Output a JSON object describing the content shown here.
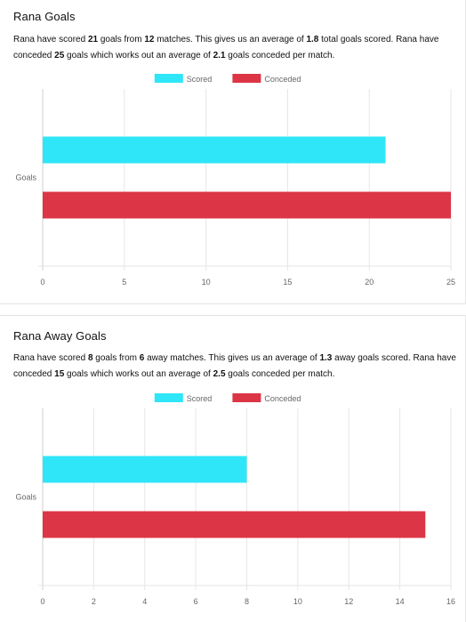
{
  "cards": [
    {
      "title": "Rana Goals",
      "desc": {
        "p1": "Rana have scored ",
        "scored": "21",
        "p2": " goals from ",
        "matches": "12",
        "p3": " matches. This gives us an average of ",
        "avg_scored": "1.8",
        "p4": " total goals scored. Rana have conceded ",
        "conceded": "25",
        "p5": " goals which works out an average of ",
        "avg_conceded": "2.1",
        "p6": " goals conceded per match."
      }
    },
    {
      "title": "Rana Away Goals",
      "desc": {
        "p1": "Rana have scored ",
        "scored": "8",
        "p2": " goals from ",
        "matches": "6",
        "p3": " away matches. This gives us an average of ",
        "avg_scored": "1.3",
        "p4": " away goals scored. Rana have conceded ",
        "conceded": "15",
        "p5": " goals which works out an average of ",
        "avg_conceded": "2.5",
        "p6": " goals conceded per match."
      }
    }
  ],
  "chart_data": [
    {
      "type": "bar",
      "orientation": "horizontal",
      "categories": [
        "Goals"
      ],
      "series": [
        {
          "name": "Scored",
          "values": [
            21
          ],
          "color": "#2ee6f7"
        },
        {
          "name": "Conceded",
          "values": [
            25
          ],
          "color": "#dc3545"
        }
      ],
      "xlim": [
        0,
        25
      ],
      "xticks": [
        0,
        5,
        10,
        15,
        20,
        25
      ],
      "legend": "top-center",
      "grid": true
    },
    {
      "type": "bar",
      "orientation": "horizontal",
      "categories": [
        "Goals"
      ],
      "series": [
        {
          "name": "Scored",
          "values": [
            8
          ],
          "color": "#2ee6f7"
        },
        {
          "name": "Conceded",
          "values": [
            15
          ],
          "color": "#dc3545"
        }
      ],
      "xlim": [
        0,
        16
      ],
      "xticks": [
        0,
        2,
        4,
        6,
        8,
        10,
        12,
        14,
        16
      ],
      "legend": "top-center",
      "grid": true
    }
  ]
}
